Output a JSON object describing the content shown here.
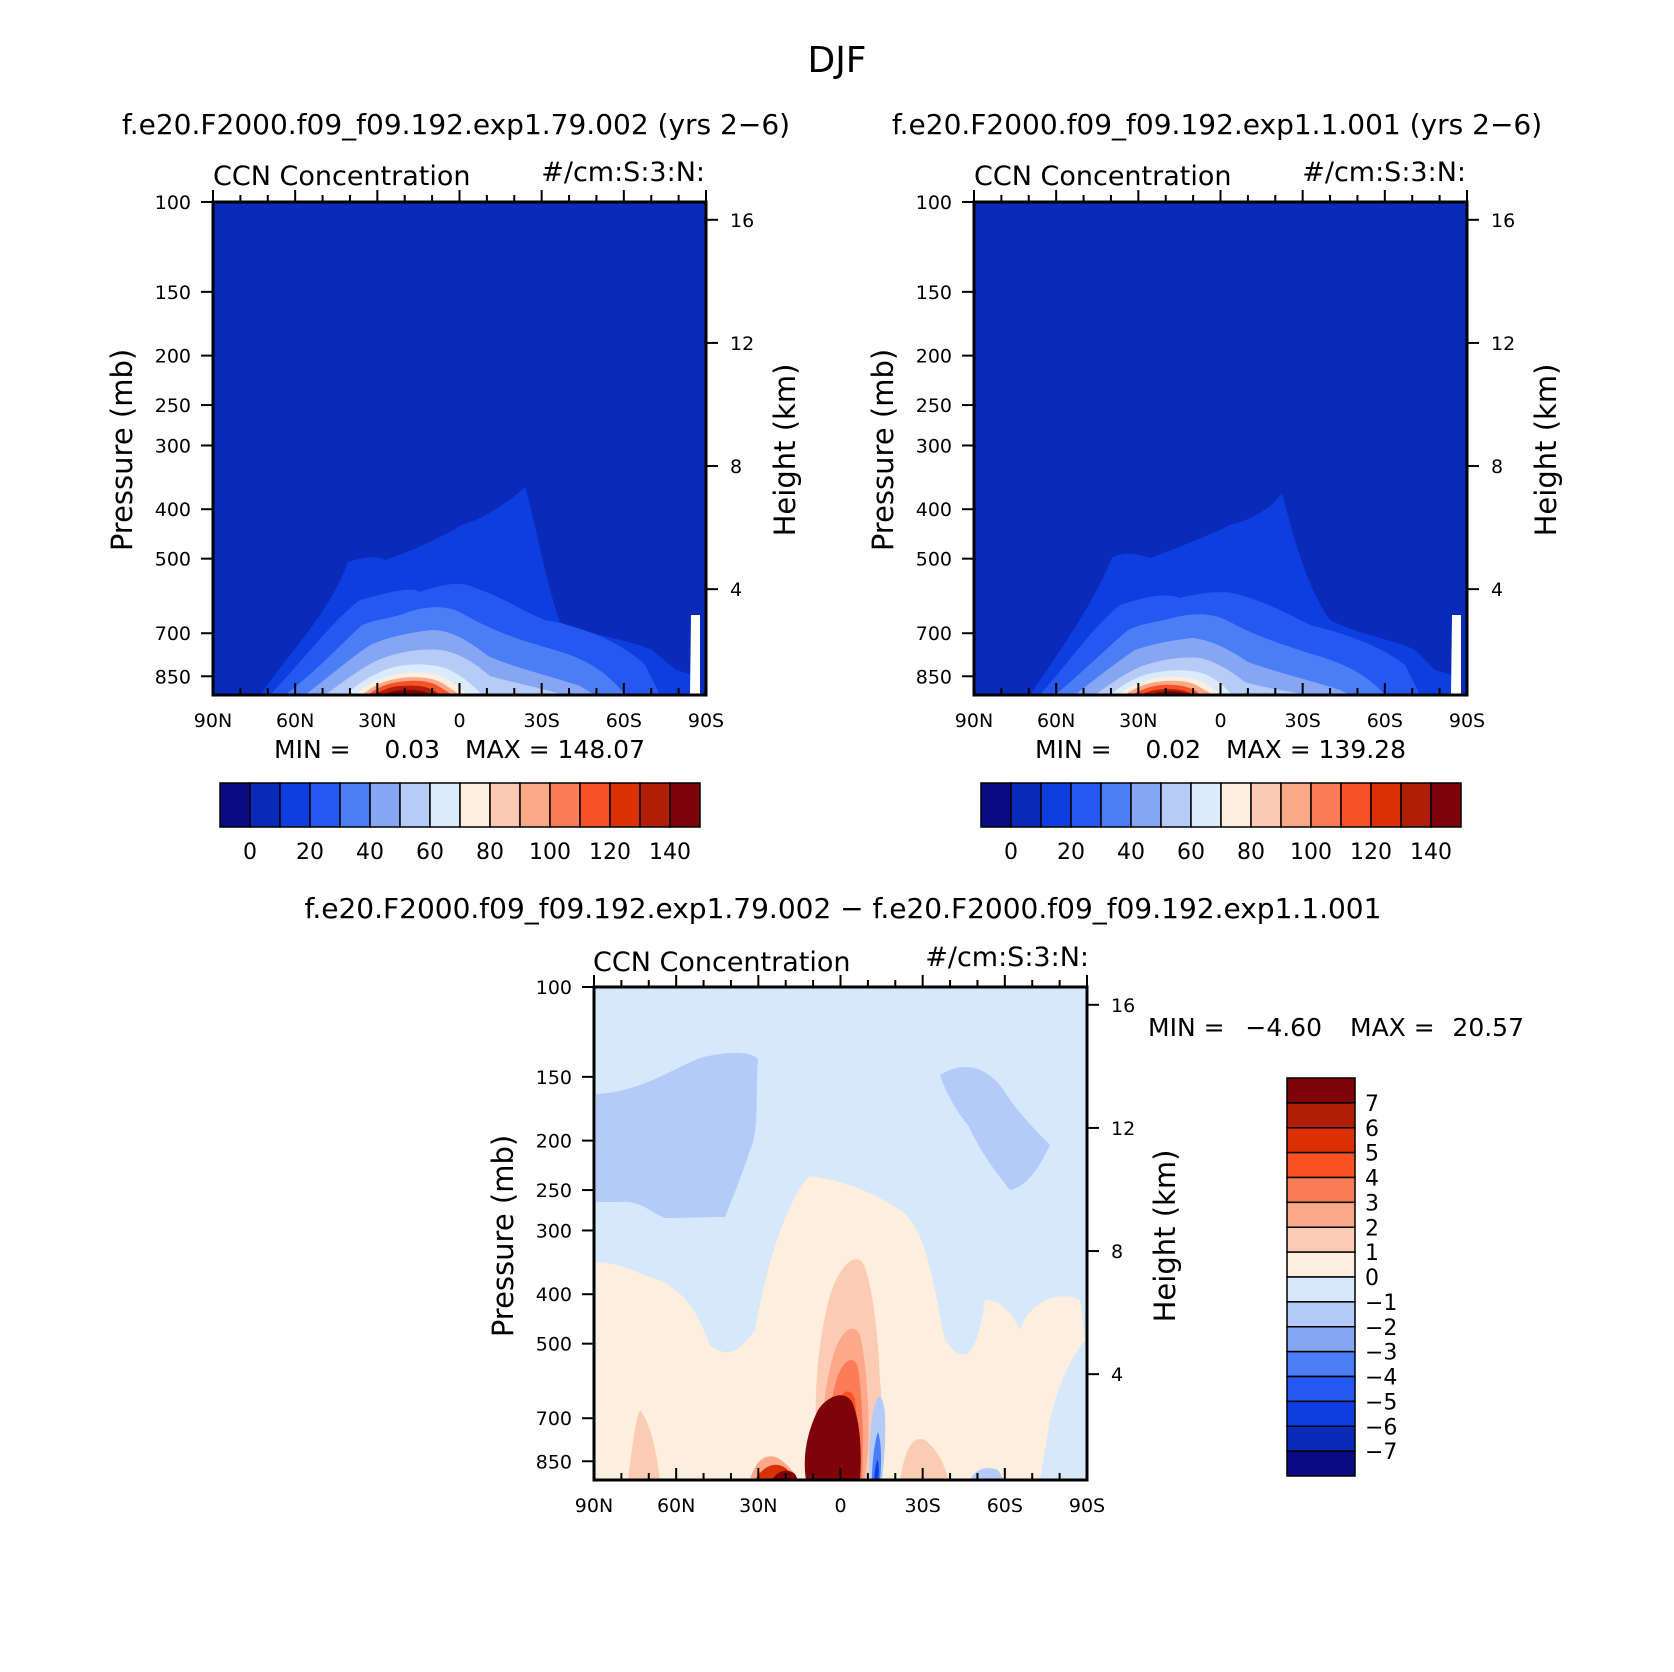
{
  "figure": {
    "title": "DJF"
  },
  "panels": [
    {
      "case_title": "f.e20.F2000.f09_f09.192.exp1.79.002 (yrs 2−6)",
      "var_label": "CCN Concentration",
      "units_label": "#/cm:S:3:N:",
      "stats": {
        "min_label": "MIN =",
        "min_value": "0.03",
        "max_label": "MAX =",
        "max_value": "148.07"
      }
    },
    {
      "case_title": "f.e20.F2000.f09_f09.192.exp1.1.001 (yrs 2−6)",
      "var_label": "CCN Concentration",
      "units_label": "#/cm:S:3:N:",
      "stats": {
        "min_label": "MIN =",
        "min_value": "0.02",
        "max_label": "MAX =",
        "max_value": "139.28"
      }
    },
    {
      "case_title": "f.e20.F2000.f09_f09.192.exp1.79.002 − f.e20.F2000.f09_f09.192.exp1.1.001",
      "var_label": "CCN Concentration",
      "units_label": "#/cm:S:3:N:",
      "stats": {
        "min_label": "MIN =",
        "min_value": "−4.60",
        "max_label": "MAX =",
        "max_value": "20.57"
      }
    }
  ],
  "chart_data": [
    {
      "type": "heatmap",
      "title": "CCN Concentration",
      "xlabel": "",
      "ylabel": "Pressure (mb)",
      "y2label": "Height (km)",
      "x_ticks": [
        "90N",
        "60N",
        "30N",
        "0",
        "30S",
        "60S",
        "90S"
      ],
      "y_ticks": [
        100,
        150,
        200,
        250,
        300,
        400,
        500,
        700,
        850
      ],
      "y_scale": "log",
      "ylim": [
        100,
        925
      ],
      "y2_ticks": [
        16,
        12,
        8,
        4
      ],
      "colorbar_labels": [
        "0",
        "20",
        "40",
        "60",
        "80",
        "100",
        "120",
        "140"
      ],
      "colorbar_colors": [
        "#0a0a84",
        "#0a2aba",
        "#0e3ee0",
        "#2458f0",
        "#4a7df6",
        "#86a6f4",
        "#b6cbf6",
        "#dcebfc",
        "#fdeede",
        "#fcc9b2",
        "#fba888",
        "#fb7c56",
        "#f65127",
        "#da3004",
        "#b01e08",
        "#7f0309"
      ],
      "min": 0.03,
      "max": 148.07
    },
    {
      "type": "heatmap",
      "title": "CCN Concentration",
      "xlabel": "",
      "ylabel": "Pressure (mb)",
      "y2label": "Height (km)",
      "x_ticks": [
        "90N",
        "60N",
        "30N",
        "0",
        "30S",
        "60S",
        "90S"
      ],
      "y_ticks": [
        100,
        150,
        200,
        250,
        300,
        400,
        500,
        700,
        850
      ],
      "y_scale": "log",
      "ylim": [
        100,
        925
      ],
      "y2_ticks": [
        16,
        12,
        8,
        4
      ],
      "colorbar_labels": [
        "0",
        "20",
        "40",
        "60",
        "80",
        "100",
        "120",
        "140"
      ],
      "colorbar_colors": [
        "#0a0a84",
        "#0a2aba",
        "#0e3ee0",
        "#2458f0",
        "#4a7df6",
        "#86a6f4",
        "#b6cbf6",
        "#dcebfc",
        "#fdeede",
        "#fcc9b2",
        "#fba888",
        "#fb7c56",
        "#f65127",
        "#da3004",
        "#b01e08",
        "#7f0309"
      ],
      "min": 0.02,
      "max": 139.28
    },
    {
      "type": "heatmap",
      "title": "CCN Concentration",
      "xlabel": "",
      "ylabel": "Pressure (mb)",
      "y2label": "Height (km)",
      "x_ticks": [
        "90N",
        "60N",
        "30N",
        "0",
        "30S",
        "60S",
        "90S"
      ],
      "y_ticks": [
        100,
        150,
        200,
        250,
        300,
        400,
        500,
        700,
        850
      ],
      "y_scale": "log",
      "ylim": [
        100,
        925
      ],
      "y2_ticks": [
        16,
        12,
        8,
        4
      ],
      "colorbar_labels": [
        "7",
        "6",
        "5",
        "4",
        "3",
        "2",
        "1",
        "0",
        "−1",
        "−2",
        "−3",
        "−4",
        "−5",
        "−6",
        "−7"
      ],
      "colorbar_colors": [
        "#7f0309",
        "#b01e08",
        "#da3004",
        "#fb5222",
        "#fb7c56",
        "#fca88a",
        "#fccbb4",
        "#fdeede",
        "#d6e8fc",
        "#b4cbf9",
        "#86a6f4",
        "#4a7df6",
        "#2458f0",
        "#0e3ee0",
        "#0a2aba",
        "#0a0a84"
      ],
      "min": -4.6,
      "max": 20.57
    }
  ]
}
